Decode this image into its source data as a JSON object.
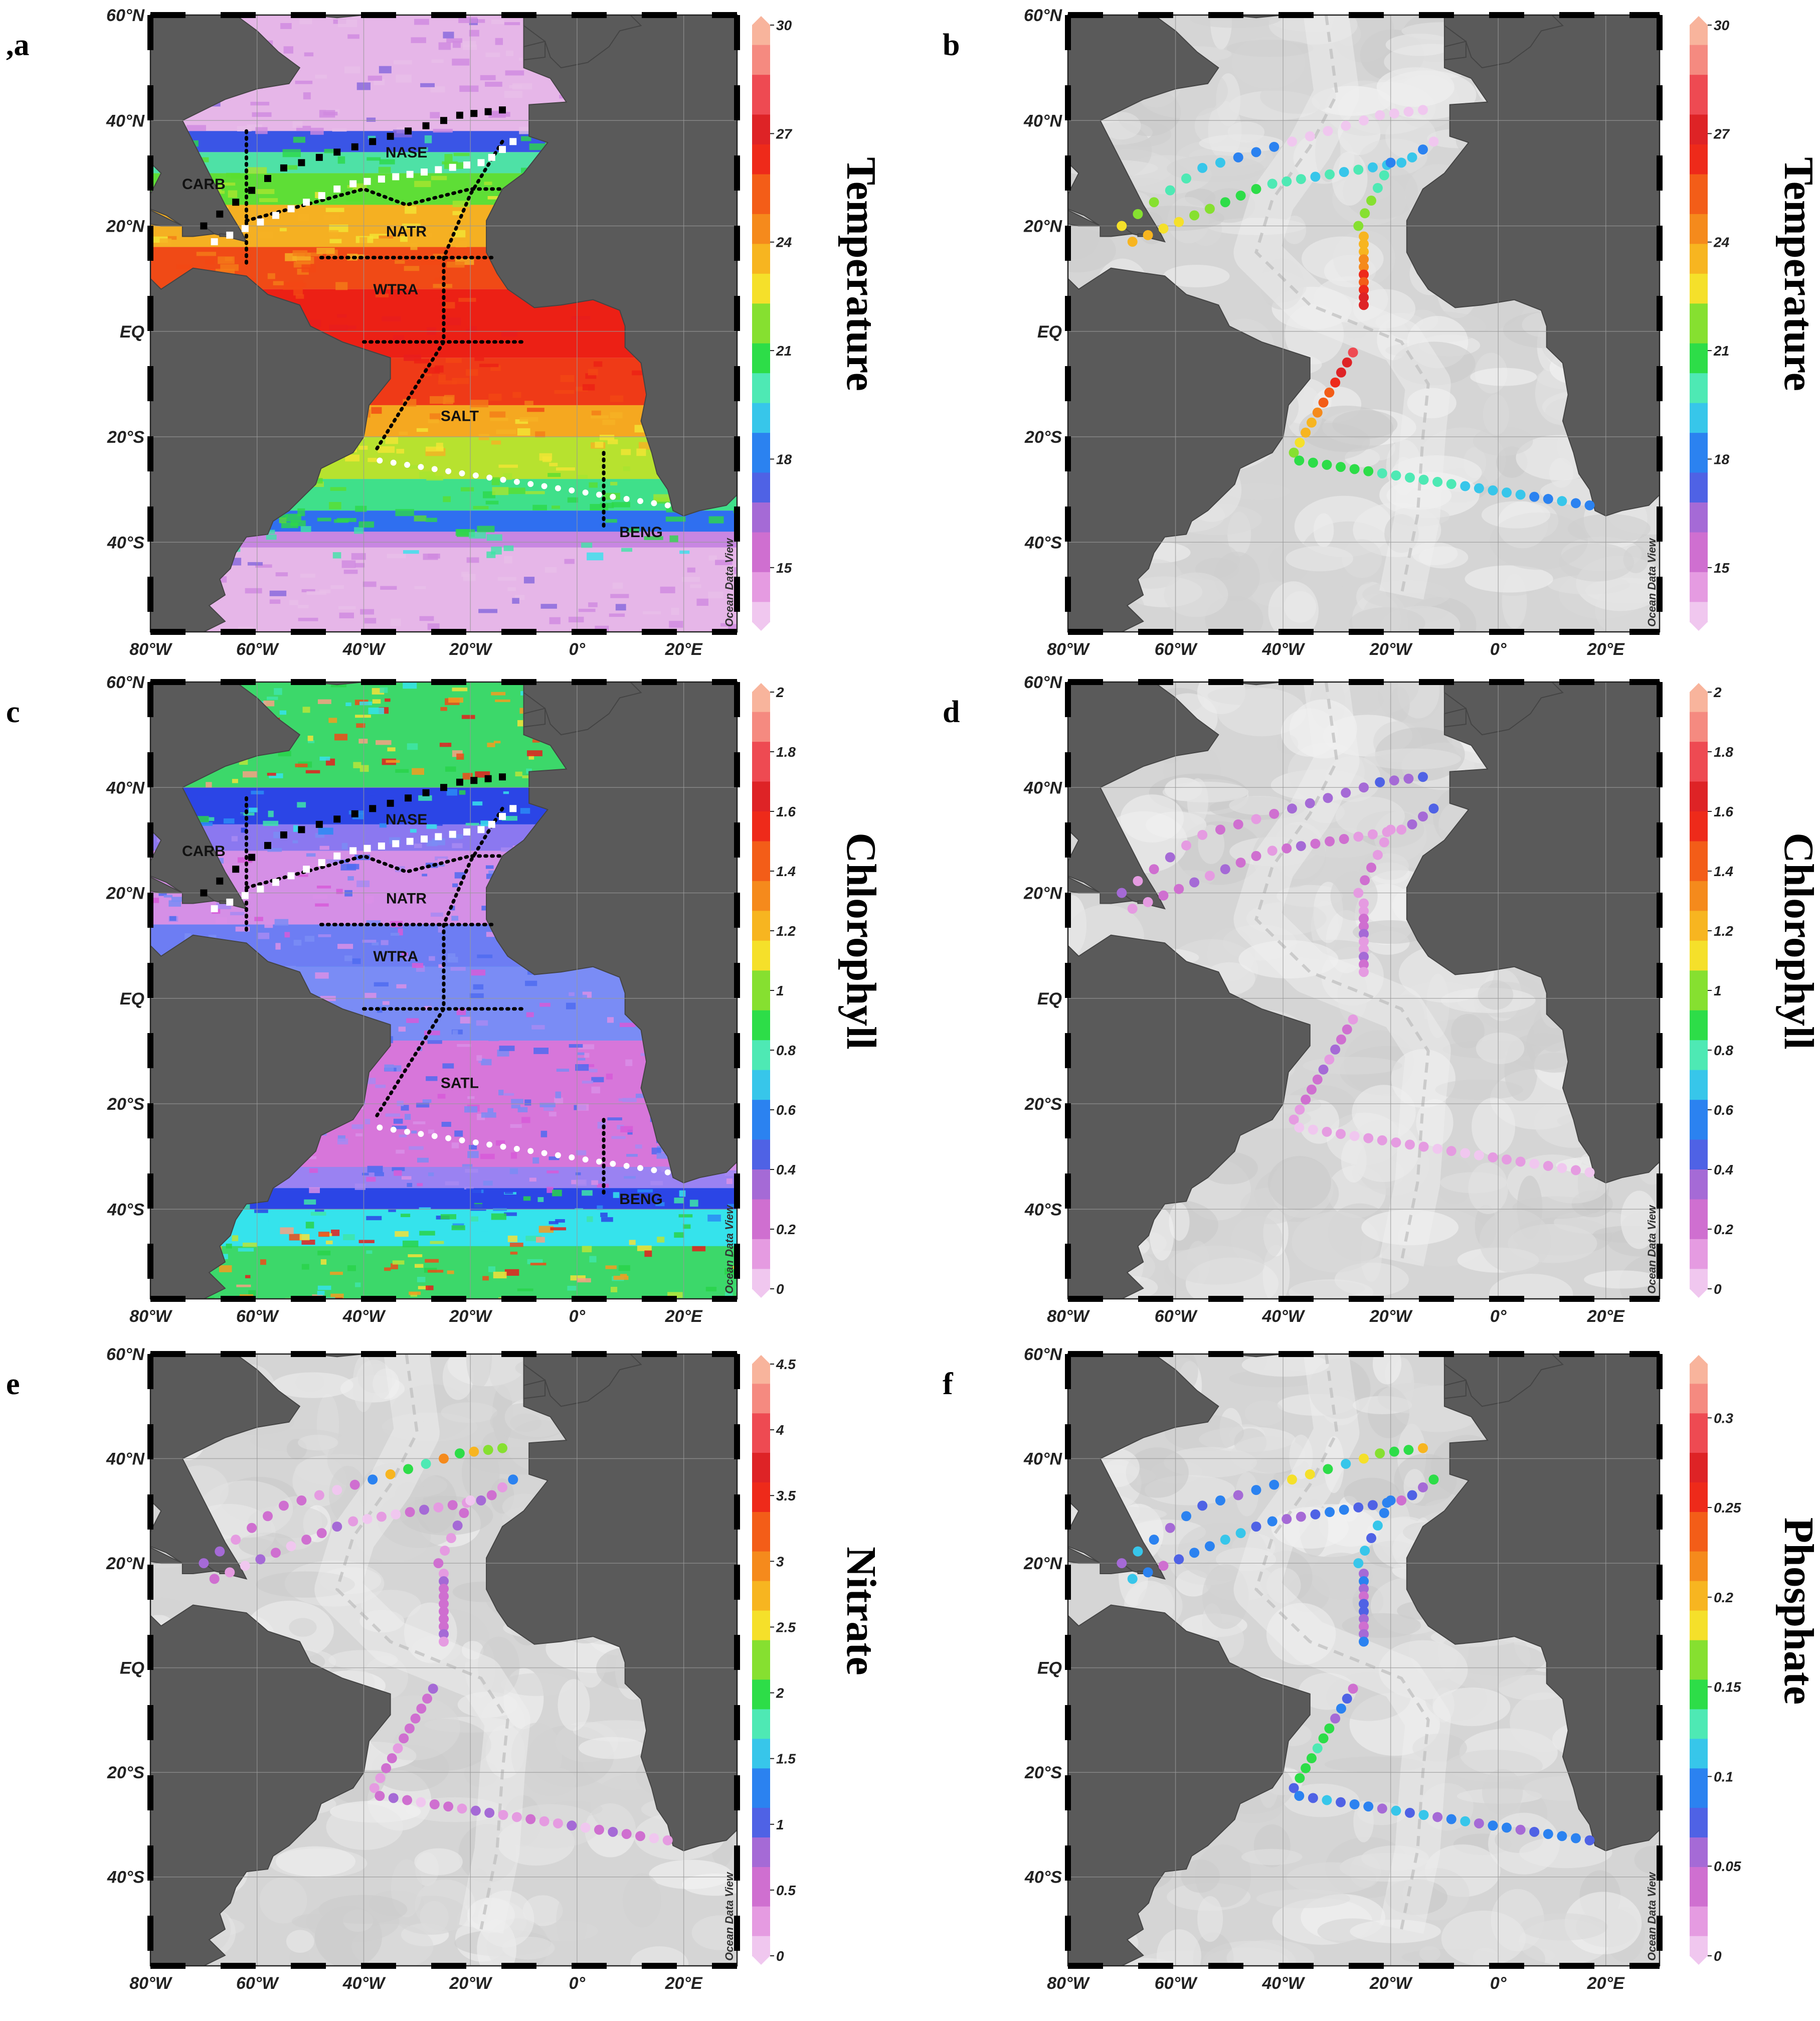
{
  "figure": {
    "axes": {
      "lon_ticks": [
        "80°W",
        "60°W",
        "40°W",
        "20°W",
        "0°",
        "20°E"
      ],
      "lat_ticks": [
        "60°N",
        "40°N",
        "20°N",
        "EQ",
        "20°S",
        "40°S"
      ]
    },
    "watermark": "Ocean Data View",
    "panels": [
      {
        "id": "a",
        "letter": ",a",
        "variable": "Temperature",
        "style": "field-temperature",
        "colorbar": {
          "ticks": [
            "30",
            "27",
            "24",
            "21",
            "18",
            "15"
          ],
          "min": 13.5,
          "max": 30
        }
      },
      {
        "id": "b",
        "letter": "b",
        "variable": "Temperature",
        "style": "stations",
        "colorbar": {
          "ticks": [
            "30",
            "27",
            "24",
            "21",
            "18",
            "15"
          ],
          "min": 13.5,
          "max": 30
        }
      },
      {
        "id": "c",
        "letter": "c",
        "variable": "Chlorophyll",
        "style": "field-chlorophyll",
        "colorbar": {
          "ticks": [
            "2",
            "1.8",
            "1.6",
            "1.4",
            "1.2",
            "1",
            "0.8",
            "0.6",
            "0.4",
            "0.2",
            "0"
          ],
          "min": 0,
          "max": 2
        }
      },
      {
        "id": "d",
        "letter": "d",
        "variable": "Chlorophyll",
        "style": "stations",
        "colorbar": {
          "ticks": [
            "2",
            "1.8",
            "1.6",
            "1.4",
            "1.2",
            "1",
            "0.8",
            "0.6",
            "0.4",
            "0.2",
            "0"
          ],
          "min": 0,
          "max": 2
        }
      },
      {
        "id": "e",
        "letter": "e",
        "variable": "Nitrate",
        "style": "stations",
        "colorbar": {
          "ticks": [
            "4.5",
            "4",
            "3.5",
            "3",
            "2.5",
            "2",
            "1.5",
            "1",
            "0.5",
            "0"
          ],
          "min": 0,
          "max": 4.5
        }
      },
      {
        "id": "f",
        "letter": "f",
        "variable": "Phosphate",
        "style": "stations",
        "colorbar": {
          "ticks": [
            "0.3",
            "0.25",
            "0.2",
            "0.15",
            "0.1",
            "0.05",
            "0"
          ],
          "min": 0,
          "max": 0.33
        }
      }
    ],
    "regions": [
      {
        "name": "NASE",
        "lon": -32,
        "lat": 33
      },
      {
        "name": "CARB",
        "lon": -70,
        "lat": 27
      },
      {
        "name": "NATR",
        "lon": -32,
        "lat": 18
      },
      {
        "name": "WTRA",
        "lon": -34,
        "lat": 7
      },
      {
        "name": "BENG",
        "lon": 12,
        "lat": -39
      }
    ],
    "regions_alt_south": {
      "a": "SALT",
      "c": "SATL"
    }
  }
}
